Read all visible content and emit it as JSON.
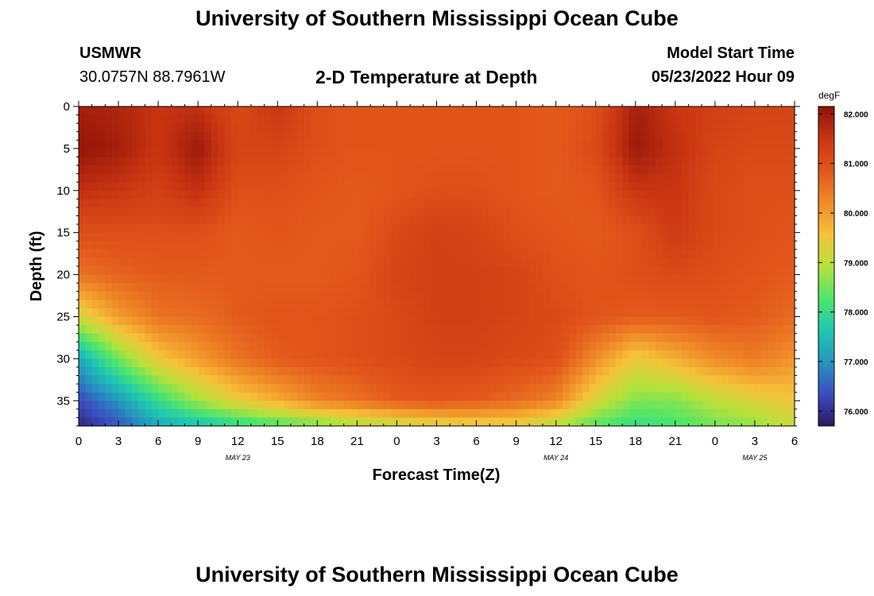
{
  "header": {
    "title": "University of Southern Mississippi Ocean Cube",
    "station": "USMWR",
    "coordinates": "30.0757N  88.7961W",
    "subtitle": "2-D Temperature at Depth",
    "model_start_label": "Model Start Time",
    "model_start_value": "05/23/2022 Hour 09"
  },
  "footer": {
    "title": "University of Southern Mississippi Ocean Cube"
  },
  "chart_data": {
    "type": "heatmap",
    "title": "2-D Temperature at Depth",
    "xlabel": "Forecast Time(Z)",
    "ylabel": "Depth (ft)",
    "x_ticks": [
      "0",
      "3",
      "6",
      "9",
      "12",
      "15",
      "18",
      "21",
      "0",
      "3",
      "6",
      "9",
      "12",
      "15",
      "18",
      "21",
      "0",
      "3",
      "6"
    ],
    "x_date_labels": [
      {
        "label": "MAY 23",
        "at_tick": 4
      },
      {
        "label": "MAY 24",
        "at_tick": 12
      },
      {
        "label": "MAY 25",
        "at_tick": 17
      }
    ],
    "y_ticks": [
      "0",
      "5",
      "10",
      "15",
      "20",
      "25",
      "30",
      "35"
    ],
    "ylim": [
      0,
      38
    ],
    "x_hours_total": 54,
    "colorbar": {
      "unit": "degF",
      "ticks": [
        "82.000",
        "81.000",
        "80.000",
        "79.000",
        "78.000",
        "77.000",
        "76.000"
      ],
      "range": [
        75.7,
        82.15
      ],
      "colors": [
        "#2a1a5e",
        "#3b4cc0",
        "#2596be",
        "#1fc8b2",
        "#4ee66a",
        "#b6e13b",
        "#f5c23a",
        "#f08a28",
        "#e2561b",
        "#c93512",
        "#8e1208"
      ]
    },
    "profiles": [
      {
        "t": 0,
        "depths": [
          0,
          5,
          10,
          15,
          20,
          25,
          30,
          35,
          38
        ],
        "temps": [
          81.9,
          82.1,
          81.6,
          81.0,
          80.5,
          79.2,
          77.2,
          76.3,
          75.9
        ]
      },
      {
        "t": 3,
        "depths": [
          0,
          5,
          10,
          15,
          20,
          25,
          30,
          35,
          38
        ],
        "temps": [
          81.8,
          81.9,
          81.5,
          81.0,
          80.7,
          80.0,
          78.5,
          77.0,
          76.4
        ]
      },
      {
        "t": 6,
        "depths": [
          0,
          5,
          10,
          15,
          20,
          25,
          30,
          35,
          38
        ],
        "temps": [
          81.5,
          81.5,
          81.3,
          81.0,
          80.8,
          80.5,
          79.5,
          78.0,
          77.2
        ]
      },
      {
        "t": 9,
        "depths": [
          0,
          5,
          10,
          15,
          20,
          25,
          30,
          35,
          38
        ],
        "temps": [
          81.6,
          82.0,
          81.6,
          81.0,
          80.8,
          80.6,
          80.0,
          78.8,
          77.5
        ]
      },
      {
        "t": 12,
        "depths": [
          0,
          5,
          10,
          15,
          20,
          25,
          30,
          35,
          38
        ],
        "temps": [
          81.1,
          81.2,
          81.0,
          80.8,
          80.8,
          80.8,
          80.5,
          79.4,
          77.9
        ]
      },
      {
        "t": 15,
        "depths": [
          0,
          5,
          10,
          15,
          20,
          25,
          30,
          35,
          38
        ],
        "temps": [
          81.5,
          81.2,
          81.0,
          80.9,
          80.8,
          80.9,
          80.8,
          79.8,
          78.2
        ]
      },
      {
        "t": 18,
        "depths": [
          0,
          5,
          10,
          15,
          20,
          25,
          30,
          35,
          38
        ],
        "temps": [
          81.0,
          81.0,
          80.9,
          80.8,
          80.8,
          80.9,
          80.9,
          80.3,
          78.5
        ]
      },
      {
        "t": 21,
        "depths": [
          0,
          5,
          10,
          15,
          20,
          25,
          30,
          35,
          38
        ],
        "temps": [
          80.9,
          80.9,
          80.8,
          80.8,
          80.9,
          81.0,
          81.0,
          80.5,
          78.8
        ]
      },
      {
        "t": 24,
        "depths": [
          0,
          5,
          10,
          15,
          20,
          25,
          30,
          35,
          38
        ],
        "temps": [
          80.9,
          80.9,
          80.9,
          81.1,
          81.2,
          81.1,
          81.1,
          80.8,
          79.0
        ]
      },
      {
        "t": 27,
        "depths": [
          0,
          5,
          10,
          15,
          20,
          25,
          30,
          35,
          38
        ],
        "temps": [
          80.9,
          80.9,
          81.0,
          81.3,
          81.3,
          81.3,
          81.2,
          80.9,
          79.2
        ]
      },
      {
        "t": 30,
        "depths": [
          0,
          5,
          10,
          15,
          20,
          25,
          30,
          35,
          38
        ],
        "temps": [
          80.9,
          80.9,
          81.0,
          81.2,
          81.3,
          81.3,
          81.2,
          80.8,
          79.3
        ]
      },
      {
        "t": 33,
        "depths": [
          0,
          5,
          10,
          15,
          20,
          25,
          30,
          35,
          38
        ],
        "temps": [
          80.9,
          80.9,
          80.9,
          81.0,
          81.2,
          81.2,
          81.1,
          80.6,
          79.3
        ]
      },
      {
        "t": 36,
        "depths": [
          0,
          5,
          10,
          15,
          20,
          25,
          30,
          35,
          38
        ],
        "temps": [
          80.8,
          80.8,
          80.8,
          80.9,
          81.0,
          81.1,
          81.0,
          80.3,
          78.9
        ]
      },
      {
        "t": 39,
        "depths": [
          0,
          5,
          10,
          15,
          20,
          25,
          30,
          35,
          38
        ],
        "temps": [
          81.0,
          81.1,
          80.9,
          80.8,
          80.9,
          80.9,
          80.2,
          79.2,
          78.3
        ]
      },
      {
        "t": 42,
        "depths": [
          0,
          5,
          10,
          15,
          20,
          25,
          30,
          35,
          38
        ],
        "temps": [
          81.9,
          82.0,
          81.5,
          81.0,
          81.0,
          80.8,
          79.4,
          78.6,
          78.0
        ]
      },
      {
        "t": 45,
        "depths": [
          0,
          5,
          10,
          15,
          20,
          25,
          30,
          35,
          38
        ],
        "temps": [
          81.5,
          81.6,
          81.5,
          81.4,
          81.1,
          80.8,
          79.8,
          78.6,
          78.2
        ]
      },
      {
        "t": 48,
        "depths": [
          0,
          5,
          10,
          15,
          20,
          25,
          30,
          35,
          38
        ],
        "temps": [
          81.3,
          81.2,
          81.1,
          81.1,
          81.0,
          80.9,
          80.2,
          79.0,
          78.5
        ]
      },
      {
        "t": 51,
        "depths": [
          0,
          5,
          10,
          15,
          20,
          25,
          30,
          35,
          38
        ],
        "temps": [
          81.2,
          81.1,
          81.0,
          81.0,
          80.9,
          80.8,
          80.4,
          79.3,
          78.7
        ]
      },
      {
        "t": 54,
        "depths": [
          0,
          5,
          10,
          15,
          20,
          25,
          30,
          35,
          38
        ],
        "temps": [
          81.2,
          81.1,
          81.0,
          80.9,
          80.8,
          80.6,
          80.1,
          79.5,
          79.1
        ]
      }
    ]
  }
}
